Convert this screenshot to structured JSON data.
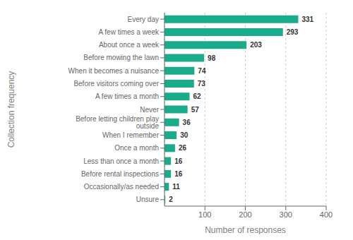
{
  "chart_data": {
    "type": "bar",
    "orientation": "horizontal",
    "categories": [
      "Unsure",
      "Occasionally/as needed",
      "Before rental inspections",
      "Less than once a month",
      "Once a month",
      "When I remember",
      "Before letting children play outside",
      "Never",
      "A few times a month",
      "Before visitors coming over",
      "When it becomes a nuisance",
      "Before mowing the lawn",
      "About once a week",
      "A few times a week",
      "Every day"
    ],
    "values": [
      2,
      11,
      16,
      16,
      26,
      30,
      36,
      57,
      62,
      73,
      74,
      98,
      203,
      293,
      331
    ],
    "color": "#1aab8a",
    "xlabel": "Number of responses",
    "ylabel": "Collection frequency",
    "xlim": [
      0,
      400
    ],
    "xticks": [
      100,
      200,
      300,
      400
    ],
    "grid": true,
    "data_labels": true
  }
}
